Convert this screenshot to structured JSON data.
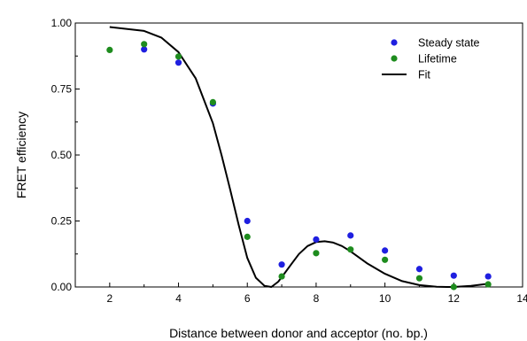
{
  "chart_data": {
    "type": "scatter",
    "title": "",
    "xlabel": "Distance between donor and acceptor (no. bp.)",
    "ylabel": "FRET efficiency",
    "xlim": [
      1,
      14
    ],
    "ylim": [
      0,
      1
    ],
    "x_ticks": [
      2,
      4,
      6,
      8,
      10,
      12,
      14
    ],
    "x_tick_labels": [
      "2",
      "4",
      "6",
      "8",
      "10",
      "12",
      "14"
    ],
    "y_ticks": [
      0,
      0.25,
      0.5,
      0.75,
      1.0
    ],
    "y_tick_labels": [
      "0.00",
      "0.25",
      "0.50",
      "0.75",
      "1.00"
    ],
    "grid": false,
    "legend_position": "top-right",
    "series": [
      {
        "name": "Steady state",
        "kind": "scatter",
        "color": "#1f1fe0",
        "x": [
          3,
          4,
          5,
          6,
          7,
          8,
          9,
          10,
          11,
          12,
          13
        ],
        "y": [
          0.9,
          0.85,
          0.695,
          0.25,
          0.085,
          0.18,
          0.195,
          0.138,
          0.068,
          0.043,
          0.04
        ]
      },
      {
        "name": "Lifetime",
        "kind": "scatter",
        "color": "#1e8c1e",
        "x": [
          2,
          3,
          4,
          5,
          6,
          7,
          8,
          9,
          10,
          11,
          12,
          13
        ],
        "y": [
          0.898,
          0.92,
          0.873,
          0.7,
          0.19,
          0.04,
          0.128,
          0.142,
          0.103,
          0.033,
          0.0,
          0.01
        ]
      },
      {
        "name": "Fit",
        "kind": "line",
        "color": "#000000",
        "x": [
          2,
          3,
          3.5,
          4,
          4.5,
          5,
          5.25,
          5.5,
          5.75,
          6,
          6.25,
          6.5,
          6.7,
          6.9,
          7.1,
          7.3,
          7.5,
          7.75,
          8,
          8.25,
          8.5,
          8.75,
          9,
          9.5,
          10,
          10.5,
          11,
          11.5,
          11.8,
          12,
          12.5,
          13
        ],
        "y": [
          0.985,
          0.97,
          0.945,
          0.89,
          0.79,
          0.62,
          0.5,
          0.37,
          0.235,
          0.11,
          0.035,
          0.004,
          0.0,
          0.02,
          0.055,
          0.09,
          0.125,
          0.155,
          0.17,
          0.173,
          0.168,
          0.155,
          0.135,
          0.088,
          0.05,
          0.022,
          0.007,
          0.001,
          0.0,
          0.0,
          0.004,
          0.012
        ]
      }
    ]
  }
}
